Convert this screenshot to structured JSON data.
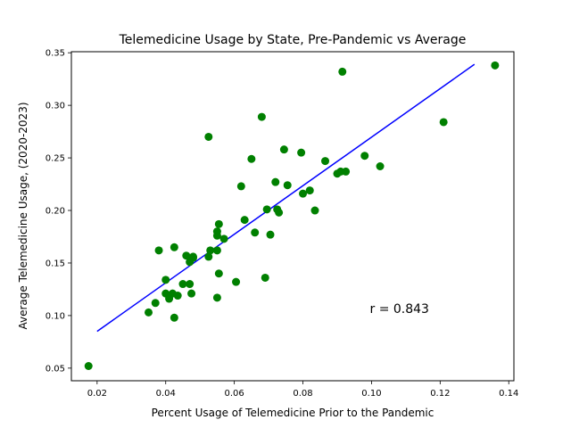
{
  "chart_data": {
    "type": "scatter",
    "title": "Telemedicine Usage by State, Pre-Pandemic vs Average",
    "xlabel": "Percent Usage of Telemedicine Prior to the Pandemic",
    "ylabel": "Average Telemedicine Usage, (2020-2023)",
    "xlim": [
      0.0125,
      0.1415
    ],
    "ylim": [
      0.038,
      0.351
    ],
    "x_ticks": [
      0.02,
      0.04,
      0.06,
      0.08,
      0.1,
      0.12,
      0.14
    ],
    "x_tick_labels": [
      "0.02",
      "0.04",
      "0.06",
      "0.08",
      "0.10",
      "0.12",
      "0.14"
    ],
    "y_ticks": [
      0.05,
      0.1,
      0.15,
      0.2,
      0.25,
      0.3,
      0.35
    ],
    "y_tick_labels": [
      "0.05",
      "0.10",
      "0.15",
      "0.20",
      "0.25",
      "0.30",
      "0.35"
    ],
    "grid": false,
    "colors": {
      "points": "#008000",
      "fit_line": "#0000ff"
    },
    "series": [
      {
        "marker": "circle",
        "points": [
          [
            0.0175,
            0.052
          ],
          [
            0.035,
            0.103
          ],
          [
            0.037,
            0.112
          ],
          [
            0.038,
            0.162
          ],
          [
            0.04,
            0.121
          ],
          [
            0.04,
            0.134
          ],
          [
            0.041,
            0.116
          ],
          [
            0.042,
            0.121
          ],
          [
            0.0425,
            0.098
          ],
          [
            0.0425,
            0.165
          ],
          [
            0.0435,
            0.119
          ],
          [
            0.045,
            0.13
          ],
          [
            0.046,
            0.157
          ],
          [
            0.047,
            0.13
          ],
          [
            0.047,
            0.151
          ],
          [
            0.0475,
            0.121
          ],
          [
            0.048,
            0.155
          ],
          [
            0.048,
            0.156
          ],
          [
            0.0525,
            0.27
          ],
          [
            0.0525,
            0.156
          ],
          [
            0.053,
            0.162
          ],
          [
            0.055,
            0.117
          ],
          [
            0.055,
            0.162
          ],
          [
            0.055,
            0.176
          ],
          [
            0.055,
            0.18
          ],
          [
            0.0555,
            0.14
          ],
          [
            0.0555,
            0.187
          ],
          [
            0.057,
            0.173
          ],
          [
            0.0605,
            0.132
          ],
          [
            0.062,
            0.223
          ],
          [
            0.063,
            0.191
          ],
          [
            0.065,
            0.249
          ],
          [
            0.066,
            0.179
          ],
          [
            0.068,
            0.289
          ],
          [
            0.069,
            0.136
          ],
          [
            0.0695,
            0.201
          ],
          [
            0.0705,
            0.177
          ],
          [
            0.072,
            0.227
          ],
          [
            0.0725,
            0.201
          ],
          [
            0.073,
            0.198
          ],
          [
            0.0745,
            0.258
          ],
          [
            0.0755,
            0.224
          ],
          [
            0.0795,
            0.255
          ],
          [
            0.08,
            0.216
          ],
          [
            0.082,
            0.219
          ],
          [
            0.0835,
            0.2
          ],
          [
            0.0865,
            0.247
          ],
          [
            0.09,
            0.235
          ],
          [
            0.091,
            0.237
          ],
          [
            0.0915,
            0.332
          ],
          [
            0.0925,
            0.237
          ],
          [
            0.098,
            0.252
          ],
          [
            0.1025,
            0.242
          ],
          [
            0.121,
            0.284
          ],
          [
            0.136,
            0.338
          ]
        ]
      }
    ],
    "fit_line": {
      "x": [
        0.02,
        0.13
      ],
      "y": [
        0.085,
        0.339
      ]
    },
    "annotation": {
      "text": "r = 0.843",
      "x": 0.0995,
      "y": 0.1025
    }
  }
}
